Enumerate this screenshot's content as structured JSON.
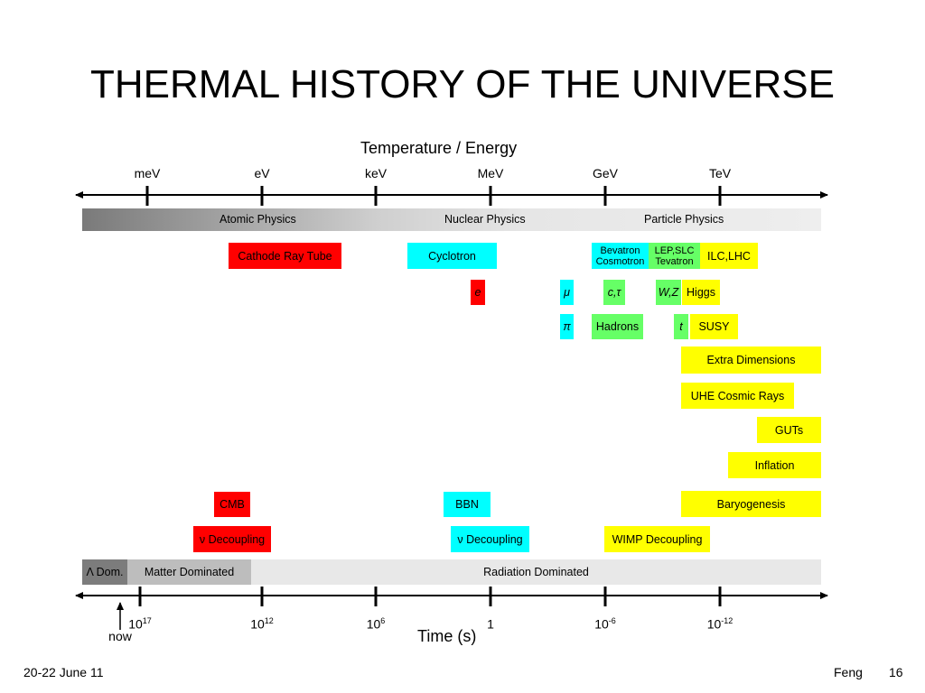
{
  "title": "THERMAL HISTORY OF THE UNIVERSE",
  "top_axis": {
    "title": "Temperature / Energy",
    "ticks": [
      "meV",
      "eV",
      "keV",
      "MeV",
      "GeV",
      "TeV"
    ]
  },
  "physics_band": {
    "labels": [
      "Atomic Physics",
      "Nuclear Physics",
      "Particle Physics"
    ]
  },
  "boxes": {
    "cathode_ray_tube": "Cathode Ray Tube",
    "cyclotron": "Cyclotron",
    "bevatron": "Bevatron",
    "cosmotron": "Cosmotron",
    "lep_slc": "LEP,SLC",
    "tevatron": "Tevatron",
    "ilc_lhc": "ILC,LHC",
    "electron": "e",
    "muon": "μ",
    "c_tau": "c,τ",
    "w_z": "W,Z",
    "higgs": "Higgs",
    "pion": "π",
    "hadrons": "Hadrons",
    "top": "t",
    "susy": "SUSY",
    "extra_dimensions": "Extra Dimensions",
    "uhe_cosmic_rays": "UHE Cosmic Rays",
    "guts": "GUTs",
    "inflation": "Inflation",
    "cmb": "CMB",
    "bbn": "BBN",
    "baryogenesis": "Baryogenesis",
    "nu_decoupling_1": "ν Decoupling",
    "nu_decoupling_2": "ν Decoupling",
    "wimp_decoupling": "WIMP Decoupling"
  },
  "era_band": {
    "lambda": "Λ Dom.",
    "matter": "Matter Dominated",
    "radiation": "Radiation Dominated"
  },
  "bottom_axis": {
    "title": "Time (s)",
    "ticks": [
      {
        "base": "10",
        "exp": "17"
      },
      {
        "base": "10",
        "exp": "12"
      },
      {
        "base": "10",
        "exp": "6"
      },
      {
        "base": "1",
        "exp": ""
      },
      {
        "base": "10",
        "exp": "-6"
      },
      {
        "base": "10",
        "exp": "-12"
      }
    ],
    "now_label": "now"
  },
  "footer": {
    "date": "20-22 June 11",
    "author": "Feng",
    "page": "16"
  },
  "colors": {
    "red": "#ff0000",
    "cyan": "#00ffff",
    "green": "#66ff66",
    "yellow": "#ffff00"
  }
}
